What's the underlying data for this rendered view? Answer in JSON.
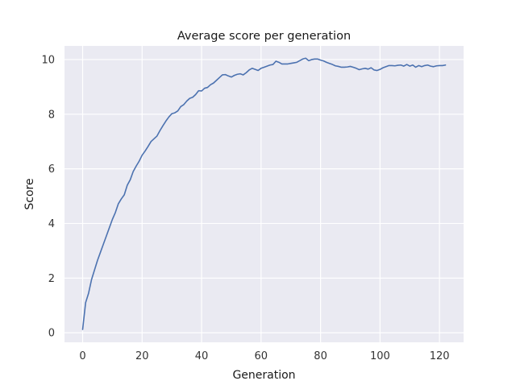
{
  "chart_data": {
    "type": "line",
    "title": "Average score per generation",
    "xlabel": "Generation",
    "ylabel": "Score",
    "xlim": [
      -6.1,
      128.1
    ],
    "ylim": [
      -0.35,
      10.5
    ],
    "xticks": [
      0,
      20,
      40,
      60,
      80,
      100,
      120
    ],
    "yticks": [
      0,
      2,
      4,
      6,
      8,
      10
    ],
    "grid": true,
    "colors": {
      "background": "#eaeaf2",
      "grid": "#ffffff",
      "line": "#4c72b0"
    },
    "series": [
      {
        "x": [
          0,
          1,
          2,
          3,
          4,
          5,
          6,
          7,
          8,
          9,
          10,
          11,
          12,
          13,
          14,
          15,
          16,
          17,
          18,
          19,
          20,
          21,
          22,
          23,
          24,
          25,
          26,
          27,
          28,
          29,
          30,
          31,
          32,
          33,
          34,
          35,
          36,
          37,
          38,
          39,
          40,
          41,
          42,
          43,
          44,
          45,
          46,
          47,
          48,
          49,
          50,
          51,
          52,
          53,
          54,
          55,
          56,
          57,
          58,
          59,
          60,
          61,
          62,
          63,
          64,
          65,
          66,
          67,
          68,
          69,
          70,
          71,
          72,
          73,
          74,
          75,
          76,
          77,
          78,
          79,
          80,
          81,
          82,
          83,
          84,
          85,
          86,
          87,
          88,
          89,
          90,
          91,
          92,
          93,
          94,
          95,
          96,
          97,
          98,
          99,
          100,
          101,
          102,
          103,
          104,
          105,
          106,
          107,
          108,
          109,
          110,
          111,
          112,
          113,
          114,
          115,
          116,
          117,
          118,
          119,
          120,
          121,
          122
        ],
        "values": [
          0.12,
          1.1,
          1.45,
          1.95,
          2.3,
          2.65,
          2.95,
          3.25,
          3.55,
          3.85,
          4.15,
          4.4,
          4.72,
          4.9,
          5.05,
          5.4,
          5.6,
          5.9,
          6.1,
          6.28,
          6.5,
          6.65,
          6.82,
          7.0,
          7.1,
          7.2,
          7.4,
          7.58,
          7.75,
          7.9,
          8.02,
          8.05,
          8.12,
          8.28,
          8.35,
          8.48,
          8.58,
          8.62,
          8.72,
          8.86,
          8.85,
          8.95,
          8.98,
          9.08,
          9.14,
          9.24,
          9.34,
          9.44,
          9.45,
          9.4,
          9.36,
          9.42,
          9.46,
          9.48,
          9.44,
          9.52,
          9.62,
          9.68,
          9.64,
          9.6,
          9.68,
          9.72,
          9.76,
          9.8,
          9.82,
          9.94,
          9.9,
          9.84,
          9.84,
          9.84,
          9.86,
          9.88,
          9.9,
          9.96,
          10.02,
          10.05,
          9.96,
          10.0,
          10.02,
          10.02,
          9.98,
          9.95,
          9.9,
          9.86,
          9.82,
          9.77,
          9.75,
          9.72,
          9.72,
          9.73,
          9.75,
          9.72,
          9.68,
          9.63,
          9.66,
          9.68,
          9.65,
          9.7,
          9.62,
          9.6,
          9.64,
          9.7,
          9.74,
          9.78,
          9.78,
          9.77,
          9.79,
          9.8,
          9.76,
          9.82,
          9.76,
          9.8,
          9.72,
          9.78,
          9.74,
          9.78,
          9.8,
          9.76,
          9.74,
          9.77,
          9.78,
          9.78,
          9.8
        ]
      }
    ]
  }
}
